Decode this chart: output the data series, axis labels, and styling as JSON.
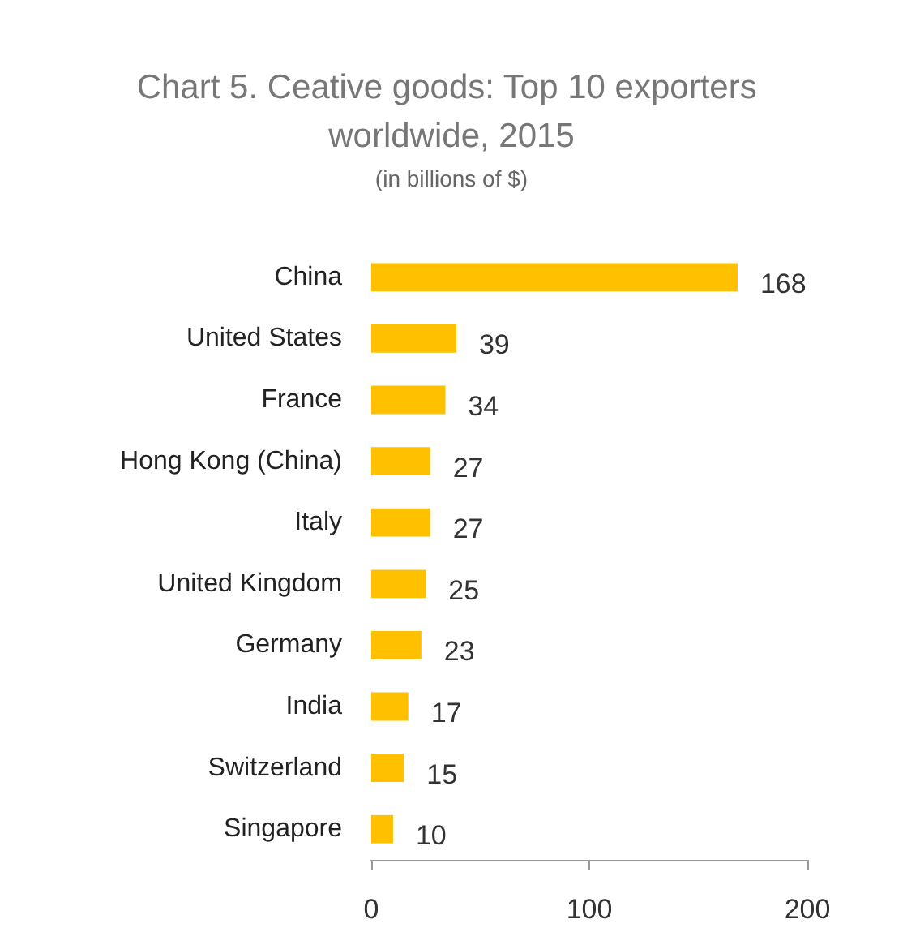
{
  "chart_data": {
    "type": "bar",
    "orientation": "horizontal",
    "title": "Chart 5. Ceative goods: Top 10 exporters worldwide, 2015",
    "subtitle": "(in billions of $)",
    "categories": [
      "China",
      "United States",
      "France",
      "Hong Kong (China)",
      "Italy",
      "United Kingdom",
      "Germany",
      "India",
      "Switzerland",
      "Singapore"
    ],
    "values": [
      168,
      39,
      34,
      27,
      27,
      25,
      23,
      17,
      15,
      10
    ],
    "color": "#ffc000",
    "xlim": [
      0,
      200
    ],
    "xticks": [
      0,
      100,
      200
    ],
    "grid": false,
    "data_labels": true
  }
}
